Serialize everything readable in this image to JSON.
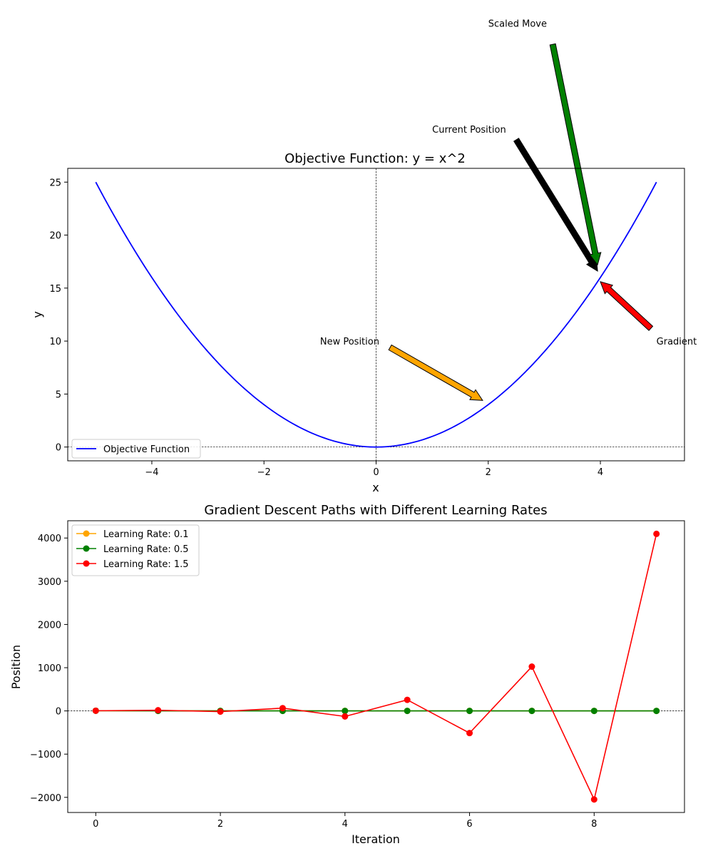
{
  "chart_data": [
    {
      "type": "line",
      "title": "Objective Function: y = x^2",
      "xlabel": "x",
      "ylabel": "y",
      "xlim": [
        -5.5,
        5.5
      ],
      "ylim": [
        -1.3,
        26.3
      ],
      "xticks": [
        -4,
        -2,
        0,
        2,
        4
      ],
      "xtick_labels": [
        "−4",
        "−2",
        "0",
        "2",
        "4"
      ],
      "yticks": [
        0,
        5,
        10,
        15,
        20,
        25
      ],
      "ytick_labels": [
        "0",
        "5",
        "10",
        "15",
        "20",
        "25"
      ],
      "grid": false,
      "reference_lines": {
        "horizontal": 0,
        "vertical": 0
      },
      "legend": {
        "position": "lower-left",
        "entries": [
          "Objective Function"
        ]
      },
      "series": [
        {
          "name": "Objective Function",
          "function": "x^2",
          "x_range": [
            -5,
            5
          ],
          "color": "#0000ff"
        }
      ],
      "annotations": [
        {
          "label": "Current Position",
          "text_at": [
            1.0,
            30
          ],
          "tail": [
            2.5,
            29
          ],
          "head": [
            3.95,
            16.6
          ],
          "color": "#000000"
        },
        {
          "label": "Gradient",
          "text_at": [
            5.0,
            10
          ],
          "tail": [
            4.9,
            11.2
          ],
          "head": [
            4.0,
            15.6
          ],
          "color": "#ff0000"
        },
        {
          "label": "Scaled Move",
          "text_at": [
            2.0,
            40
          ],
          "tail": [
            3.15,
            38
          ],
          "head": [
            3.95,
            17.2
          ],
          "color": "#008000"
        },
        {
          "label": "New Position",
          "text_at": [
            -1.0,
            10
          ],
          "tail": [
            0.25,
            9.4
          ],
          "head": [
            1.9,
            4.4
          ],
          "color": "#ffa500"
        }
      ]
    },
    {
      "type": "line",
      "title": "Gradient Descent Paths with Different Learning Rates",
      "xlabel": "Iteration",
      "ylabel": "Position",
      "xlim": [
        -0.45,
        9.45
      ],
      "ylim": [
        -2350,
        4400
      ],
      "xticks": [
        0,
        2,
        4,
        6,
        8
      ],
      "xtick_labels": [
        "0",
        "2",
        "4",
        "6",
        "8"
      ],
      "yticks": [
        -2000,
        -1000,
        0,
        1000,
        2000,
        3000,
        4000
      ],
      "ytick_labels": [
        "−2000",
        "−1000",
        "0",
        "1000",
        "2000",
        "3000",
        "4000"
      ],
      "grid": false,
      "reference_lines": {
        "horizontal": 0
      },
      "legend": {
        "position": "upper-left"
      },
      "x": [
        0,
        1,
        2,
        3,
        4,
        5,
        6,
        7,
        8,
        9
      ],
      "series": [
        {
          "name": "Learning Rate: 0.1",
          "color": "#ffa500",
          "values": [
            4,
            3.2,
            2.56,
            2.05,
            1.64,
            1.31,
            1.05,
            0.84,
            0.67,
            0.54
          ]
        },
        {
          "name": "Learning Rate: 0.5",
          "color": "#008000",
          "values": [
            4,
            0,
            0,
            0,
            0,
            0,
            0,
            0,
            0,
            0
          ]
        },
        {
          "name": "Learning Rate: 1.5",
          "color": "#ff0000",
          "values": [
            4,
            16,
            -16,
            64,
            -128,
            256,
            -512,
            1024,
            -2048,
            4096
          ]
        }
      ]
    }
  ]
}
